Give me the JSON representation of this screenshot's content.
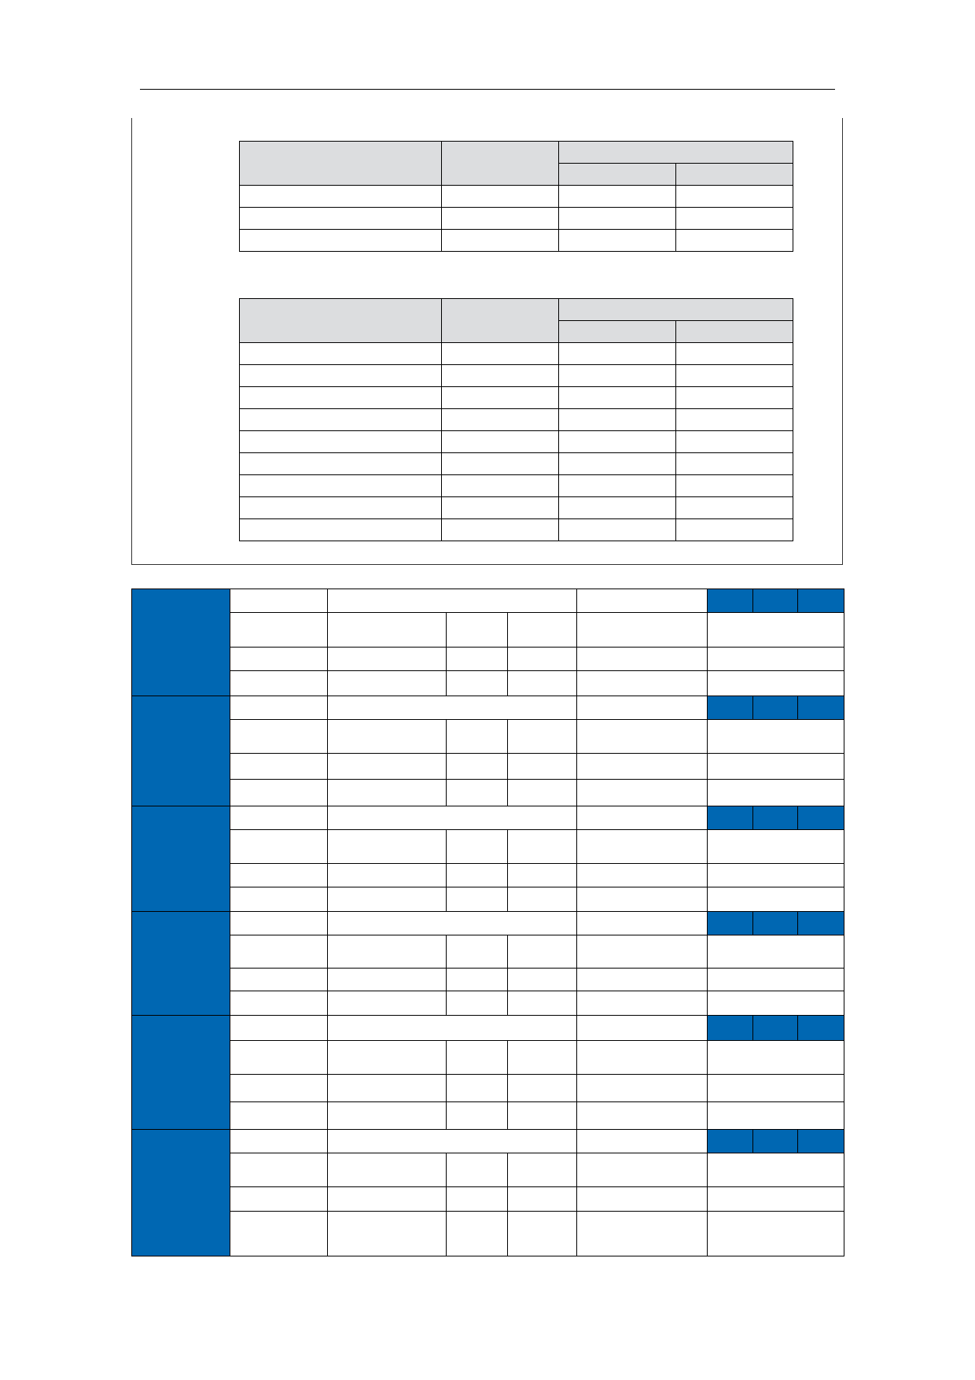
{
  "colors": {
    "header_gray": "#dcdddf",
    "accent_blue": "#0067b2",
    "rule": "#000000"
  }
}
